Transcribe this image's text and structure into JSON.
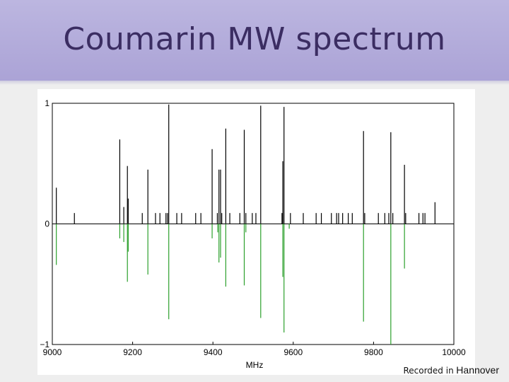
{
  "slide": {
    "title": "Coumarin MW spectrum",
    "caption_lead": "Recorded in",
    "caption_place": "Hannover"
  },
  "colors": {
    "header": "#aba3d6",
    "title": "#3b2d62",
    "experiment": "#000000",
    "simulation": "#2ca02c"
  },
  "chart_data": {
    "type": "bar",
    "xlabel": "MHz",
    "xlim": [
      9000,
      10000
    ],
    "ylim": [
      -1,
      1
    ],
    "xticks": [
      "9000",
      "9200",
      "9400",
      "9600",
      "9800",
      "10000"
    ],
    "yticks": [
      "1",
      "0",
      "−1"
    ],
    "series": [
      {
        "color": "#000000",
        "points": [
          [
            9010,
            0.3
          ],
          [
            9055,
            0.09
          ],
          [
            9168,
            0.7
          ],
          [
            9178,
            0.14
          ],
          [
            9187,
            0.48
          ],
          [
            9189,
            0.21
          ],
          [
            9238,
            0.45
          ],
          [
            9224,
            0.09
          ],
          [
            9257,
            0.09
          ],
          [
            9268,
            0.09
          ],
          [
            9283,
            0.09
          ],
          [
            9290,
            0.99
          ],
          [
            9287,
            0.09
          ],
          [
            9310,
            0.09
          ],
          [
            9322,
            0.09
          ],
          [
            9357,
            0.09
          ],
          [
            9370,
            0.09
          ],
          [
            9398,
            0.62
          ],
          [
            9411,
            0.09
          ],
          [
            9415,
            0.45
          ],
          [
            9419,
            0.45
          ],
          [
            9422,
            0.09
          ],
          [
            9432,
            0.79
          ],
          [
            9442,
            0.09
          ],
          [
            9467,
            0.09
          ],
          [
            9478,
            0.78
          ],
          [
            9482,
            0.09
          ],
          [
            9498,
            0.09
          ],
          [
            9519,
            0.98
          ],
          [
            9507,
            0.09
          ],
          [
            9574,
            0.52
          ],
          [
            9577,
            0.97
          ],
          [
            9572,
            0.09
          ],
          [
            9593,
            0.09
          ],
          [
            9625,
            0.09
          ],
          [
            9657,
            0.09
          ],
          [
            9670,
            0.09
          ],
          [
            9695,
            0.09
          ],
          [
            9708,
            0.09
          ],
          [
            9713,
            0.09
          ],
          [
            9723,
            0.09
          ],
          [
            9737,
            0.09
          ],
          [
            9747,
            0.09
          ],
          [
            9775,
            0.77
          ],
          [
            9778,
            0.09
          ],
          [
            9812,
            0.09
          ],
          [
            9828,
            0.09
          ],
          [
            9838,
            0.09
          ],
          [
            9843,
            0.76
          ],
          [
            9848,
            0.09
          ],
          [
            9877,
            0.49
          ],
          [
            9880,
            0.09
          ],
          [
            9913,
            0.09
          ],
          [
            9923,
            0.09
          ],
          [
            9928,
            0.09
          ],
          [
            9953,
            0.18
          ]
        ]
      },
      {
        "color": "#2ca02c",
        "points": [
          [
            9010,
            -0.34
          ],
          [
            9168,
            -0.12
          ],
          [
            9178,
            -0.15
          ],
          [
            9187,
            -0.48
          ],
          [
            9189,
            -0.23
          ],
          [
            9238,
            -0.42
          ],
          [
            9290,
            -0.79
          ],
          [
            9398,
            -0.12
          ],
          [
            9412,
            -0.07
          ],
          [
            9415,
            -0.32
          ],
          [
            9419,
            -0.28
          ],
          [
            9432,
            -0.52
          ],
          [
            9478,
            -0.51
          ],
          [
            9482,
            -0.07
          ],
          [
            9519,
            -0.78
          ],
          [
            9574,
            -0.44
          ],
          [
            9577,
            -0.9
          ],
          [
            9590,
            -0.04
          ],
          [
            9775,
            -0.81
          ],
          [
            9843,
            -1.0
          ],
          [
            9877,
            -0.37
          ]
        ]
      }
    ],
    "grid": false,
    "legend": "none"
  }
}
